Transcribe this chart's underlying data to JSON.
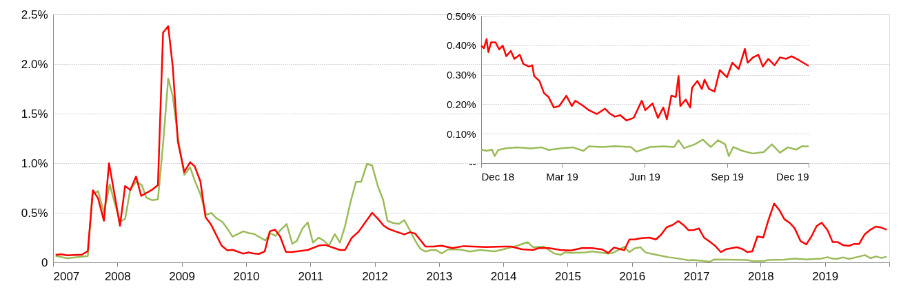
{
  "chart_data": [
    {
      "type": "line",
      "xlim": [
        2007,
        2020
      ],
      "ylim": [
        0,
        2.5
      ],
      "grid": "y",
      "xticks": [
        2007,
        2008,
        2009,
        2010,
        2011,
        2012,
        2013,
        2014,
        2015,
        2016,
        2017,
        2018,
        2019,
        {
          "value": 2020,
          "label": null
        }
      ],
      "yticks": [
        0,
        {
          "value": 0.5,
          "label": "0.5%"
        },
        {
          "value": 1.0,
          "label": "1.0%"
        },
        {
          "value": 1.5,
          "label": "1.5%"
        },
        {
          "value": 2.0,
          "label": "2.0%"
        },
        {
          "value": 2.5,
          "label": "2.5%"
        }
      ],
      "series": [
        {
          "color": "#9bbb59",
          "x": [
            2007.04,
            2007.22,
            2007.54,
            2007.61,
            2007.7,
            2007.79,
            2007.88,
            2007.95,
            2008.04,
            2008.12,
            2008.2,
            2008.29,
            2008.38,
            2008.45,
            2008.54,
            2008.63,
            2008.71,
            2008.79,
            2008.86,
            2008.95,
            2009.04,
            2009.13,
            2009.2,
            2009.29,
            2009.38,
            2009.46,
            2009.54,
            2009.63,
            2009.71,
            2009.79,
            2009.96,
            2010.04,
            2010.12,
            2010.3,
            2010.38,
            2010.46,
            2010.54,
            2010.63,
            2010.72,
            2010.79,
            2010.88,
            2010.96,
            2011.04,
            2011.13,
            2011.21,
            2011.29,
            2011.38,
            2011.46,
            2011.54,
            2011.63,
            2011.71,
            2011.79,
            2011.88,
            2011.96,
            2012.05,
            2012.13,
            2012.2,
            2012.29,
            2012.38,
            2012.46,
            2012.54,
            2012.63,
            2012.71,
            2012.79,
            2012.88,
            2012.96,
            2013.04,
            2013.14,
            2013.32,
            2013.48,
            2013.64,
            2013.86,
            2013.96,
            2014.21,
            2014.38,
            2014.46,
            2014.63,
            2014.79,
            2014.89,
            2014.96,
            2015.05,
            2015.28,
            2015.38,
            2015.63,
            2015.7,
            2015.88,
            2015.96,
            2016.04,
            2016.13,
            2016.21,
            2016.38,
            2016.56,
            2016.72,
            2016.88,
            2016.95,
            2017.21,
            2017.28,
            2017.47,
            2017.79,
            2017.87,
            2018.04,
            2018.12,
            2018.37,
            2018.53,
            2018.71,
            2018.95,
            2019.04,
            2019.12,
            2019.2,
            2019.28,
            2019.37,
            2019.53,
            2019.62,
            2019.71,
            2019.79,
            2019.88,
            2019.96
          ],
          "values": [
            0.065,
            0.041,
            0.065,
            0.687,
            0.719,
            0.502,
            0.786,
            0.618,
            0.41,
            0.438,
            0.733,
            0.813,
            0.779,
            0.652,
            0.627,
            0.636,
            1.194,
            1.855,
            1.677,
            1.217,
            0.882,
            0.959,
            0.829,
            0.687,
            0.479,
            0.498,
            0.445,
            0.41,
            0.341,
            0.26,
            0.313,
            0.295,
            0.288,
            0.221,
            0.295,
            0.267,
            0.329,
            0.387,
            0.187,
            0.218,
            0.345,
            0.403,
            0.2,
            0.25,
            0.218,
            0.171,
            0.285,
            0.2,
            0.368,
            0.623,
            0.813,
            0.813,
            0.993,
            0.977,
            0.766,
            0.634,
            0.419,
            0.396,
            0.389,
            0.426,
            0.333,
            0.218,
            0.137,
            0.109,
            0.125,
            0.123,
            0.09,
            0.13,
            0.13,
            0.109,
            0.125,
            0.111,
            0.125,
            0.167,
            0.204,
            0.153,
            0.16,
            0.09,
            0.076,
            0.102,
            0.095,
            0.1,
            0.111,
            0.088,
            0.095,
            0.157,
            0.104,
            0.141,
            0.153,
            0.1,
            0.076,
            0.053,
            0.039,
            0.021,
            0.025,
            0.007,
            0.03,
            0.028,
            0.025,
            0.012,
            0.012,
            0.025,
            0.028,
            0.039,
            0.03,
            0.039,
            0.053,
            0.037,
            0.037,
            0.051,
            0.035,
            0.058,
            0.074,
            0.042,
            0.06,
            0.044,
            0.058
          ]
        },
        {
          "color": "#ff0000",
          "x": [
            2007.04,
            2007.13,
            2007.22,
            2007.45,
            2007.54,
            2007.62,
            2007.7,
            2007.79,
            2007.87,
            2008.04,
            2008.12,
            2008.2,
            2008.29,
            2008.37,
            2008.54,
            2008.63,
            2008.71,
            2008.79,
            2008.86,
            2008.94,
            2009.04,
            2009.13,
            2009.2,
            2009.29,
            2009.37,
            2009.46,
            2009.62,
            2009.71,
            2009.79,
            2009.96,
            2010.04,
            2010.11,
            2010.2,
            2010.29,
            2010.37,
            2010.45,
            2010.53,
            2010.62,
            2010.71,
            2010.96,
            2011.14,
            2011.23,
            2011.46,
            2011.54,
            2011.64,
            2011.75,
            2011.96,
            2012.05,
            2012.14,
            2012.21,
            2012.31,
            2012.46,
            2012.55,
            2012.63,
            2012.79,
            2012.91,
            2013.04,
            2013.21,
            2013.38,
            2013.54,
            2013.73,
            2014.0,
            2014.12,
            2014.29,
            2014.46,
            2014.55,
            2014.71,
            2014.89,
            2015.05,
            2015.22,
            2015.38,
            2015.54,
            2015.63,
            2015.72,
            2015.88,
            2015.96,
            2016.04,
            2016.13,
            2016.27,
            2016.37,
            2016.45,
            2016.54,
            2016.63,
            2016.72,
            2016.8,
            2016.88,
            2016.96,
            2017.04,
            2017.12,
            2017.21,
            2017.29,
            2017.38,
            2017.47,
            2017.63,
            2017.72,
            2017.79,
            2017.87,
            2017.95,
            2018.04,
            2018.12,
            2018.21,
            2018.29,
            2018.37,
            2018.46,
            2018.53,
            2018.62,
            2018.71,
            2018.79,
            2018.87,
            2018.95,
            2019.04,
            2019.12,
            2019.2,
            2019.28,
            2019.37,
            2019.45,
            2019.53,
            2019.62,
            2019.71,
            2019.79,
            2019.88,
            2019.96
          ],
          "values": [
            0.076,
            0.081,
            0.071,
            0.078,
            0.115,
            0.728,
            0.645,
            0.42,
            1.0,
            0.37,
            0.77,
            0.73,
            0.866,
            0.67,
            0.733,
            0.78,
            2.318,
            2.382,
            1.977,
            1.217,
            0.912,
            1.01,
            0.97,
            0.818,
            0.456,
            0.376,
            0.168,
            0.122,
            0.127,
            0.088,
            0.101,
            0.09,
            0.085,
            0.11,
            0.313,
            0.33,
            0.26,
            0.106,
            0.104,
            0.125,
            0.171,
            0.176,
            0.125,
            0.125,
            0.245,
            0.31,
            0.5,
            0.44,
            0.37,
            0.34,
            0.315,
            0.282,
            0.305,
            0.29,
            0.16,
            0.16,
            0.169,
            0.144,
            0.164,
            0.16,
            0.155,
            0.16,
            0.16,
            0.132,
            0.125,
            0.144,
            0.144,
            0.125,
            0.12,
            0.144,
            0.144,
            0.13,
            0.095,
            0.15,
            0.123,
            0.231,
            0.231,
            0.243,
            0.25,
            0.231,
            0.278,
            0.354,
            0.377,
            0.417,
            0.377,
            0.324,
            0.326,
            0.343,
            0.25,
            0.208,
            0.169,
            0.104,
            0.134,
            0.153,
            0.134,
            0.104,
            0.111,
            0.262,
            0.25,
            0.424,
            0.593,
            0.528,
            0.435,
            0.394,
            0.343,
            0.215,
            0.181,
            0.262,
            0.366,
            0.4,
            0.324,
            0.204,
            0.204,
            0.174,
            0.167,
            0.185,
            0.185,
            0.285,
            0.331,
            0.361,
            0.35,
            0.329
          ]
        }
      ]
    },
    {
      "type": "line",
      "xlim": [
        "2018-12-01",
        "2019-12-01"
      ],
      "ylim": [
        0,
        0.5
      ],
      "grid": "y",
      "xticks": [
        {
          "value": "2018-12-01",
          "label": "Dec 18"
        },
        {
          "value": "2019-03-01",
          "label": "Mar 19"
        },
        {
          "value": "2019-06-01",
          "label": "Jun 19"
        },
        {
          "value": "2019-09-01",
          "label": "Sep 19"
        },
        {
          "value": "2019-12-01",
          "label": "Dec 19"
        }
      ],
      "yticks": [
        {
          "value": 0,
          "label": "--"
        },
        {
          "value": 0.1,
          "label": "0.10%"
        },
        {
          "value": 0.2,
          "label": "0.20%"
        },
        {
          "value": 0.3,
          "label": "0.30%"
        },
        {
          "value": 0.4,
          "label": "0.40%"
        },
        {
          "value": 0.5,
          "label": "0.50%"
        }
      ],
      "series": [
        {
          "color": "#ff0000",
          "x": [
            "2018-12-01",
            "2018-12-04",
            "2018-12-07",
            "2018-12-09",
            "2018-12-12",
            "2018-12-17",
            "2018-12-21",
            "2018-12-25",
            "2018-12-29",
            "2019-01-03",
            "2019-01-07",
            "2019-01-13",
            "2019-01-17",
            "2019-01-23",
            "2019-01-27",
            "2019-01-29",
            "2019-02-04",
            "2019-02-09",
            "2019-02-14",
            "2019-02-20",
            "2019-02-26",
            "2019-03-06",
            "2019-03-12",
            "2019-03-16",
            "2019-03-25",
            "2019-03-31",
            "2019-04-09",
            "2019-04-18",
            "2019-04-24",
            "2019-04-29",
            "2019-05-05",
            "2019-05-12",
            "2019-05-20",
            "2019-05-29",
            "2019-06-02",
            "2019-06-10",
            "2019-06-16",
            "2019-06-22",
            "2019-06-26",
            "2019-07-01",
            "2019-07-06",
            "2019-07-09",
            "2019-07-11",
            "2019-07-17",
            "2019-07-22",
            "2019-07-24",
            "2019-07-30",
            "2019-08-04",
            "2019-08-07",
            "2019-08-12",
            "2019-08-18",
            "2019-08-24",
            "2019-09-01",
            "2019-09-07",
            "2019-09-14",
            "2019-09-21",
            "2019-09-24",
            "2019-09-30",
            "2019-10-06",
            "2019-10-11",
            "2019-10-17",
            "2019-10-24",
            "2019-10-30",
            "2019-11-06",
            "2019-11-12",
            "2019-11-20",
            "2019-12-01"
          ],
          "values": [
            0.399,
            0.39,
            0.421,
            0.377,
            0.41,
            0.41,
            0.386,
            0.399,
            0.363,
            0.381,
            0.354,
            0.368,
            0.337,
            0.328,
            0.332,
            0.296,
            0.279,
            0.238,
            0.225,
            0.189,
            0.194,
            0.229,
            0.194,
            0.212,
            0.194,
            0.18,
            0.167,
            0.185,
            0.167,
            0.158,
            0.163,
            0.145,
            0.154,
            0.212,
            0.18,
            0.203,
            0.154,
            0.189,
            0.149,
            0.229,
            0.225,
            0.296,
            0.194,
            0.216,
            0.189,
            0.256,
            0.279,
            0.252,
            0.283,
            0.252,
            0.243,
            0.316,
            0.292,
            0.341,
            0.319,
            0.388,
            0.341,
            0.359,
            0.368,
            0.328,
            0.354,
            0.332,
            0.359,
            0.354,
            0.363,
            0.35,
            0.33
          ]
        },
        {
          "color": "#9bbb59",
          "x": [
            "2018-12-01",
            "2018-12-07",
            "2018-12-13",
            "2018-12-16",
            "2018-12-20",
            "2018-12-29",
            "2019-01-10",
            "2019-01-25",
            "2019-02-06",
            "2019-02-14",
            "2019-03-01",
            "2019-03-13",
            "2019-03-25",
            "2019-03-31",
            "2019-04-15",
            "2019-04-29",
            "2019-05-17",
            "2019-05-23",
            "2019-06-07",
            "2019-06-22",
            "2019-07-04",
            "2019-07-09",
            "2019-07-15",
            "2019-07-27",
            "2019-08-05",
            "2019-08-14",
            "2019-08-22",
            "2019-08-30",
            "2019-09-03",
            "2019-09-08",
            "2019-09-18",
            "2019-09-30",
            "2019-10-12",
            "2019-10-21",
            "2019-10-30",
            "2019-11-08",
            "2019-11-17",
            "2019-11-23",
            "2019-12-01"
          ],
          "values": [
            0.046,
            0.042,
            0.046,
            0.024,
            0.045,
            0.051,
            0.054,
            0.05,
            0.054,
            0.045,
            0.051,
            0.054,
            0.042,
            0.057,
            0.055,
            0.058,
            0.055,
            0.039,
            0.055,
            0.057,
            0.055,
            0.078,
            0.051,
            0.064,
            0.08,
            0.055,
            0.078,
            0.064,
            0.024,
            0.055,
            0.042,
            0.033,
            0.038,
            0.064,
            0.036,
            0.054,
            0.046,
            0.057,
            0.057
          ]
        }
      ]
    }
  ]
}
